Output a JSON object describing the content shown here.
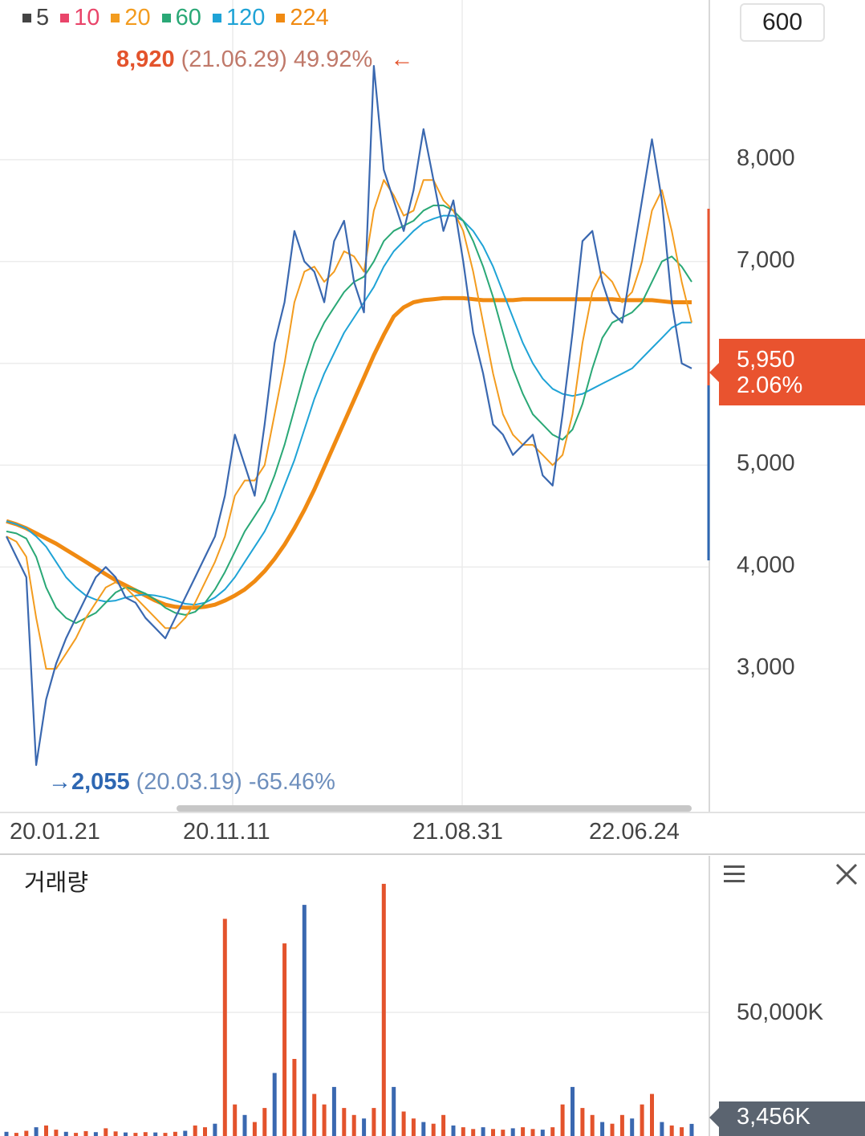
{
  "period_button": "600",
  "legend": [
    {
      "label": "5",
      "color": "#444444"
    },
    {
      "label": "10",
      "color": "#e9456a"
    },
    {
      "label": "20",
      "color": "#f39c1f"
    },
    {
      "label": "60",
      "color": "#2aa876"
    },
    {
      "label": "120",
      "color": "#1fa3d6"
    },
    {
      "label": "224",
      "color": "#f08a12"
    }
  ],
  "high_annotation": {
    "value": "8,920",
    "date": "(21.06.29)",
    "pct": "49.92%",
    "arrow": "←"
  },
  "low_annotation": {
    "arrow": "→",
    "value": "2,055",
    "date": "(20.03.19)",
    "pct": "-65.46%"
  },
  "price_badge": {
    "price": "5,950",
    "change": "2.06%"
  },
  "volume": {
    "title": "거래량",
    "tick": "50,000K",
    "current": "3,456K"
  },
  "chart_data": {
    "type": "line",
    "title": "",
    "price_axis": {
      "ylim": [
        2000,
        9000
      ],
      "ticks": [
        3000,
        4000,
        5000,
        6000,
        7000,
        8000
      ],
      "tick_labels": [
        "3,000",
        "4,000",
        "5,000",
        "7,000",
        "8,000"
      ],
      "tick_values": [
        3000,
        4000,
        5000,
        7000,
        8000
      ]
    },
    "x_labels": [
      "20.01.21",
      "20.11.11",
      "21.08.31",
      "22.06.24"
    ],
    "x_label_positions": [
      0.0,
      0.4,
      0.74,
      1.0
    ],
    "series": [
      {
        "name": "5",
        "values": [
          4300,
          4100,
          3900,
          2055,
          2700,
          3050,
          3300,
          3500,
          3700,
          3900,
          4000,
          3900,
          3700,
          3650,
          3500,
          3400,
          3300,
          3500,
          3700,
          3900,
          4100,
          4300,
          4700,
          5300,
          5000,
          4700,
          5400,
          6200,
          6600,
          7300,
          7000,
          6900,
          6600,
          7200,
          7400,
          6800,
          6500,
          8920,
          7900,
          7600,
          7300,
          7700,
          8300,
          7800,
          7300,
          7600,
          7000,
          6300,
          5900,
          5400,
          5300,
          5100,
          5200,
          5300,
          4900,
          4800,
          5500,
          6300,
          7200,
          7300,
          6800,
          6500,
          6400,
          7000,
          7600,
          8200,
          7600,
          6600,
          6000,
          5950
        ]
      },
      {
        "name": "20",
        "values": [
          4300,
          4250,
          4100,
          3500,
          3000,
          3000,
          3150,
          3300,
          3500,
          3650,
          3800,
          3850,
          3800,
          3700,
          3600,
          3500,
          3400,
          3400,
          3500,
          3650,
          3850,
          4050,
          4300,
          4700,
          4850,
          4850,
          5000,
          5500,
          6000,
          6600,
          6900,
          6950,
          6800,
          6900,
          7100,
          7050,
          6900,
          7500,
          7800,
          7650,
          7450,
          7500,
          7800,
          7800,
          7600,
          7500,
          7300,
          6900,
          6400,
          5900,
          5500,
          5300,
          5200,
          5200,
          5100,
          5000,
          5100,
          5500,
          6200,
          6700,
          6900,
          6800,
          6600,
          6700,
          7000,
          7500,
          7700,
          7300,
          6800,
          6400
        ]
      },
      {
        "name": "60",
        "values": [
          4350,
          4330,
          4280,
          4100,
          3800,
          3600,
          3500,
          3450,
          3500,
          3550,
          3650,
          3750,
          3800,
          3780,
          3740,
          3680,
          3600,
          3550,
          3530,
          3560,
          3650,
          3780,
          3950,
          4150,
          4350,
          4500,
          4650,
          4900,
          5200,
          5550,
          5900,
          6200,
          6400,
          6550,
          6700,
          6800,
          6850,
          7000,
          7200,
          7300,
          7350,
          7400,
          7500,
          7550,
          7550,
          7500,
          7400,
          7200,
          6950,
          6650,
          6300,
          5950,
          5700,
          5500,
          5400,
          5300,
          5250,
          5350,
          5600,
          5950,
          6250,
          6400,
          6450,
          6500,
          6600,
          6800,
          7000,
          7050,
          6950,
          6800
        ]
      },
      {
        "name": "120",
        "values": [
          4450,
          4420,
          4380,
          4300,
          4200,
          4050,
          3900,
          3800,
          3720,
          3680,
          3660,
          3670,
          3700,
          3720,
          3730,
          3720,
          3700,
          3670,
          3640,
          3630,
          3650,
          3700,
          3780,
          3900,
          4050,
          4200,
          4350,
          4550,
          4800,
          5050,
          5350,
          5650,
          5900,
          6100,
          6300,
          6450,
          6600,
          6750,
          6950,
          7100,
          7200,
          7300,
          7380,
          7420,
          7450,
          7450,
          7400,
          7300,
          7150,
          6950,
          6700,
          6450,
          6200,
          6000,
          5850,
          5750,
          5700,
          5680,
          5700,
          5750,
          5800,
          5850,
          5900,
          5950,
          6050,
          6150,
          6250,
          6350,
          6400,
          6400
        ]
      },
      {
        "name": "224",
        "values": [
          4450,
          4420,
          4380,
          4330,
          4280,
          4230,
          4170,
          4110,
          4050,
          3990,
          3930,
          3870,
          3820,
          3770,
          3720,
          3670,
          3630,
          3610,
          3600,
          3600,
          3610,
          3630,
          3670,
          3720,
          3780,
          3860,
          3960,
          4080,
          4220,
          4380,
          4560,
          4760,
          4980,
          5200,
          5420,
          5640,
          5860,
          6080,
          6280,
          6460,
          6550,
          6600,
          6620,
          6630,
          6640,
          6640,
          6640,
          6630,
          6620,
          6620,
          6620,
          6620,
          6630,
          6630,
          6630,
          6630,
          6630,
          6630,
          6630,
          6630,
          6630,
          6630,
          6620,
          6620,
          6620,
          6620,
          6610,
          6600,
          6600,
          6600
        ]
      }
    ],
    "volume_series": {
      "name": "거래량",
      "ylim": [
        0,
        80000
      ],
      "ticks": [
        50000
      ],
      "values": [
        1200,
        900,
        1500,
        2500,
        3000,
        1800,
        1200,
        900,
        1400,
        1100,
        2200,
        1300,
        1000,
        900,
        1100,
        1000,
        900,
        1200,
        1500,
        3000,
        2500,
        3500,
        62000,
        9000,
        6000,
        4000,
        8000,
        18000,
        55000,
        22000,
        66000,
        12000,
        9000,
        14000,
        8000,
        6000,
        5000,
        8000,
        72000,
        14000,
        7000,
        5000,
        4000,
        3500,
        6000,
        3000,
        2500,
        2000,
        2500,
        2000,
        1800,
        2200,
        2500,
        2000,
        1800,
        2500,
        9000,
        14000,
        8000,
        6000,
        4000,
        3500,
        6000,
        5000,
        9000,
        12000,
        4000,
        3000,
        2500,
        3456
      ]
    }
  }
}
